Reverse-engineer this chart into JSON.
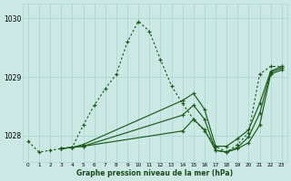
{
  "title": "Graphe pression niveau de la mer (hPa)",
  "xlabel_hours": [
    0,
    1,
    2,
    3,
    4,
    5,
    6,
    7,
    8,
    9,
    10,
    11,
    12,
    13,
    14,
    15,
    16,
    17,
    18,
    19,
    20,
    21,
    22,
    23
  ],
  "ylim": [
    1027.55,
    1030.25
  ],
  "yticks": [
    1028,
    1029,
    1030
  ],
  "background_color": "#cce8e4",
  "grid_color": "#aad8d4",
  "line_color": "#1a5c1a",
  "lines": [
    {
      "x": [
        0,
        1,
        2,
        3,
        4,
        5,
        6,
        7,
        8,
        9,
        10,
        11,
        12,
        13,
        14,
        15,
        16,
        17,
        18,
        19,
        20,
        21,
        22,
        23
      ],
      "y": [
        1027.9,
        1027.72,
        1027.75,
        1027.78,
        1027.8,
        1028.18,
        1028.52,
        1028.8,
        1029.05,
        1029.6,
        1029.95,
        1029.78,
        1029.3,
        1028.85,
        1028.55,
        1028.28,
        1028.08,
        1027.82,
        1027.72,
        1027.85,
        1028.05,
        1029.05,
        1029.18,
        1029.18
      ],
      "linestyle": "dotted"
    },
    {
      "x": [
        3,
        4,
        5,
        14,
        15,
        16,
        17,
        18,
        19,
        20,
        21,
        22,
        23
      ],
      "y": [
        1027.78,
        1027.8,
        1027.85,
        1028.6,
        1028.72,
        1028.45,
        1027.82,
        1027.82,
        1027.95,
        1028.1,
        1028.55,
        1029.1,
        1029.18
      ],
      "linestyle": "solid"
    },
    {
      "x": [
        3,
        4,
        5,
        14,
        15,
        16,
        17,
        18,
        19,
        20,
        21,
        22,
        23
      ],
      "y": [
        1027.78,
        1027.8,
        1027.82,
        1028.35,
        1028.52,
        1028.28,
        1027.75,
        1027.72,
        1027.8,
        1027.98,
        1028.38,
        1029.08,
        1029.15
      ],
      "linestyle": "solid"
    },
    {
      "x": [
        3,
        4,
        5,
        14,
        15,
        16,
        17,
        18,
        19,
        20,
        21,
        22,
        23
      ],
      "y": [
        1027.78,
        1027.8,
        1027.82,
        1028.08,
        1028.28,
        1028.1,
        1027.75,
        1027.72,
        1027.78,
        1027.88,
        1028.18,
        1029.05,
        1029.12
      ],
      "linestyle": "solid"
    }
  ]
}
